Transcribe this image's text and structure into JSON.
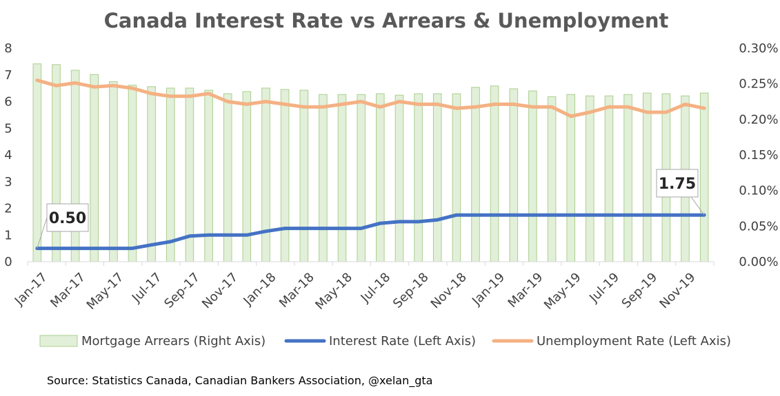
{
  "chart_data": {
    "type": "bar+line",
    "title": "Canada Interest Rate vs Arrears & Unemployment",
    "x_tick_labels": [
      "Jan-17",
      "Mar-17",
      "May-17",
      "Jul-17",
      "Sep-17",
      "Nov-17",
      "Jan-18",
      "Mar-18",
      "May-18",
      "Jul-18",
      "Sep-18",
      "Nov-18",
      "Jan-19",
      "Mar-19",
      "May-19",
      "Jul-19",
      "Sep-19",
      "Nov-19"
    ],
    "months": [
      "Jan-17",
      "Feb-17",
      "Mar-17",
      "Apr-17",
      "May-17",
      "Jun-17",
      "Jul-17",
      "Aug-17",
      "Sep-17",
      "Oct-17",
      "Nov-17",
      "Dec-17",
      "Jan-18",
      "Feb-18",
      "Mar-18",
      "Apr-18",
      "May-18",
      "Jun-18",
      "Jul-18",
      "Aug-18",
      "Sep-18",
      "Oct-18",
      "Nov-18",
      "Dec-18",
      "Jan-19",
      "Feb-19",
      "Mar-19",
      "Apr-19",
      "May-19",
      "Jun-19",
      "Jul-19",
      "Aug-19",
      "Sep-19",
      "Oct-19",
      "Nov-19",
      "Dec-19"
    ],
    "left_axis": {
      "ylim": [
        0,
        8
      ],
      "ticks": [
        "0",
        "1",
        "2",
        "3",
        "4",
        "5",
        "6",
        "7",
        "8"
      ]
    },
    "right_axis": {
      "ylim": [
        0,
        0.3
      ],
      "ticks": [
        "0.00%",
        "0.05%",
        "0.10%",
        "0.15%",
        "0.20%",
        "0.25%",
        "0.30%"
      ]
    },
    "series": [
      {
        "name": "Mortgage Arrears (Right Axis)",
        "type": "bar",
        "axis": "right",
        "color": "#e2efd9",
        "border": "#a9d08e",
        "values": [
          0.278,
          0.277,
          0.269,
          0.263,
          0.253,
          0.248,
          0.246,
          0.244,
          0.244,
          0.241,
          0.236,
          0.239,
          0.244,
          0.242,
          0.241,
          0.235,
          0.235,
          0.235,
          0.236,
          0.234,
          0.236,
          0.236,
          0.236,
          0.245,
          0.247,
          0.243,
          0.24,
          0.232,
          0.235,
          0.233,
          0.233,
          0.235,
          0.237,
          0.236,
          0.233,
          0.237
        ]
      },
      {
        "name": "Interest Rate (Left Axis)",
        "type": "line",
        "axis": "left",
        "color": "#4472c4",
        "values": [
          0.5,
          0.5,
          0.5,
          0.5,
          0.5,
          0.5,
          0.63,
          0.75,
          0.96,
          1.0,
          1.0,
          1.0,
          1.14,
          1.25,
          1.25,
          1.25,
          1.25,
          1.25,
          1.44,
          1.5,
          1.5,
          1.57,
          1.75,
          1.75,
          1.75,
          1.75,
          1.75,
          1.75,
          1.75,
          1.75,
          1.75,
          1.75,
          1.75,
          1.75,
          1.75,
          1.75
        ]
      },
      {
        "name": "Unemployment Rate (Left Axis)",
        "type": "line",
        "axis": "left",
        "color": "#f4b183",
        "values": [
          6.8,
          6.6,
          6.7,
          6.55,
          6.6,
          6.5,
          6.3,
          6.2,
          6.2,
          6.3,
          6.0,
          5.9,
          6.0,
          5.9,
          5.8,
          5.8,
          5.9,
          6.0,
          5.8,
          6.0,
          5.9,
          5.9,
          5.75,
          5.8,
          5.9,
          5.9,
          5.8,
          5.8,
          5.45,
          5.6,
          5.8,
          5.8,
          5.6,
          5.6,
          5.9,
          5.75
        ]
      }
    ],
    "annotations": [
      {
        "label": "0.50",
        "series": "Interest Rate (Left Axis)",
        "month_index": 0
      },
      {
        "label": "1.75",
        "series": "Interest Rate (Left Axis)",
        "month_index": 35
      }
    ],
    "grid": false,
    "legend_position": "bottom"
  },
  "source_text": "Source: Statistics Canada, Canadian Bankers Association, @xelan_gta"
}
